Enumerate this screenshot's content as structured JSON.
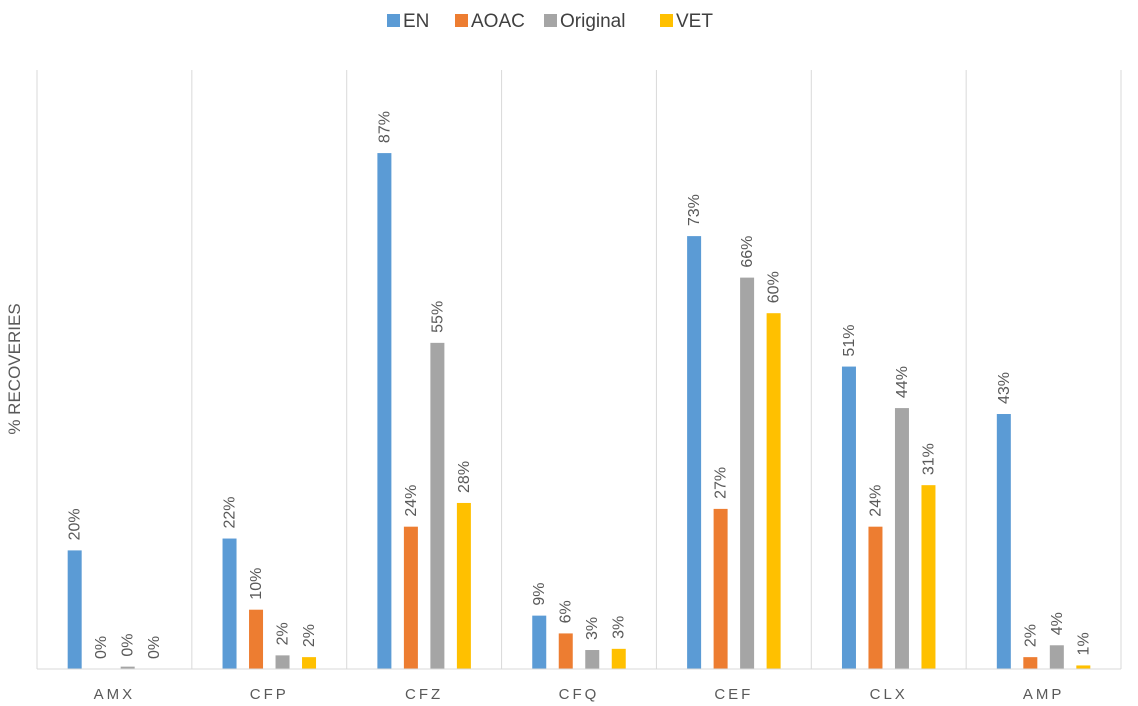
{
  "chart_data": {
    "type": "bar",
    "title": "",
    "xlabel": "",
    "ylabel": "% RECOVERIES",
    "ylim": [
      0,
      100
    ],
    "grid": "vertical category separators",
    "legend_position": "top",
    "categories": [
      "AMX",
      "CFP",
      "CFZ",
      "CFQ",
      "CEF",
      "CLX",
      "AMP"
    ],
    "series": [
      {
        "name": "EN",
        "color": "#5B9BD5",
        "values": [
          20,
          22,
          87,
          9,
          73,
          51,
          43
        ],
        "labels": [
          "20%",
          "22%",
          "87%",
          "9%",
          "73%",
          "51%",
          "43%"
        ]
      },
      {
        "name": "AOAC",
        "color": "#ED7D31",
        "values": [
          0,
          10,
          24,
          6,
          27,
          24,
          2
        ],
        "labels": [
          "0%",
          "10%",
          "24%",
          "6%",
          "27%",
          "24%",
          "2%"
        ]
      },
      {
        "name": "Original",
        "color": "#A5A5A5",
        "values": [
          0.4,
          2.3,
          55,
          3.2,
          66,
          44,
          4
        ],
        "labels": [
          "0%",
          "2%",
          "55%",
          "3%",
          "66%",
          "44%",
          "4%"
        ]
      },
      {
        "name": "VET",
        "color": "#FFC000",
        "values": [
          0,
          2,
          28,
          3.4,
          60,
          31,
          0.6
        ],
        "labels": [
          "0%",
          "2%",
          "28%",
          "3%",
          "60%",
          "31%",
          "1%"
        ]
      }
    ]
  }
}
